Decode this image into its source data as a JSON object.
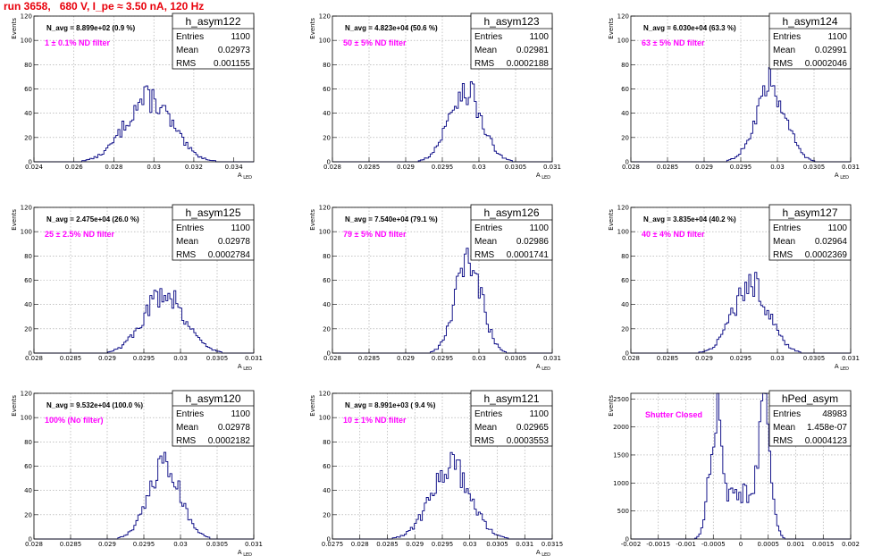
{
  "page": {
    "title": "run 3658,   680 V, I_pe ≈ 3.50 nA, 120 Hz"
  },
  "colors": {
    "title": "#e8000b",
    "histogram": "#000080",
    "annotation": "#ff00ff",
    "grid": "#a0a0a0"
  },
  "chart_data": [
    {
      "type": "histogram",
      "name": "h_asym122",
      "xlabel": "A_LED",
      "ylabel": "Events",
      "xlim": [
        0.024,
        0.035
      ],
      "ylim": [
        0,
        120
      ],
      "xticks": [
        "0.024",
        "0.026",
        "0.028",
        "0.03",
        "0.032",
        "0.034"
      ],
      "xtick_values": [
        0.024,
        0.026,
        0.028,
        0.03,
        0.032,
        0.034
      ],
      "yticks": [
        0,
        20,
        40,
        60,
        80,
        100,
        120
      ],
      "grid": true,
      "stats": {
        "Entries": "1100",
        "Mean": "0.02973",
        "RMS": "0.001155"
      },
      "n_avg": "N_avg = 8.899e+02 (0.9 %)",
      "filter": "1 ± 0.1% ND filter",
      "mean": 0.02973,
      "rms": 0.001155,
      "peak": 52
    },
    {
      "type": "histogram",
      "name": "h_asym123",
      "xlabel": "A_LED",
      "ylabel": "Events",
      "xlim": [
        0.028,
        0.031
      ],
      "ylim": [
        0,
        120
      ],
      "xticks": [
        "0.028",
        "0.0285",
        "0.029",
        "0.0295",
        "0.03",
        "0.0305",
        "0.031"
      ],
      "xtick_values": [
        0.028,
        0.0285,
        0.029,
        0.0295,
        0.03,
        0.0305,
        0.031
      ],
      "yticks": [
        0,
        20,
        40,
        60,
        80,
        100,
        120
      ],
      "grid": true,
      "stats": {
        "Entries": "1100",
        "Mean": "0.02981",
        "RMS": "0.0002188"
      },
      "n_avg": "N_avg = 4.823e+04 (50.6 %)",
      "filter": "50 ± 5% ND filter",
      "mean": 0.02981,
      "rms": 0.0002188,
      "peak": 60
    },
    {
      "type": "histogram",
      "name": "h_asym124",
      "xlabel": "A_LED",
      "ylabel": "Events",
      "xlim": [
        0.028,
        0.031
      ],
      "ylim": [
        0,
        120
      ],
      "xticks": [
        "0.028",
        "0.0285",
        "0.029",
        "0.0295",
        "0.03",
        "0.0305",
        "0.031"
      ],
      "xtick_values": [
        0.028,
        0.0285,
        0.029,
        0.0295,
        0.03,
        0.0305,
        0.031
      ],
      "yticks": [
        0,
        20,
        40,
        60,
        80,
        100,
        120
      ],
      "grid": true,
      "stats": {
        "Entries": "1100",
        "Mean": "0.02991",
        "RMS": "0.0002046"
      },
      "n_avg": "N_avg = 6.030e+04 (63.3 %)",
      "filter": "63 ± 5% ND filter",
      "mean": 0.02991,
      "rms": 0.0002046,
      "peak": 64
    },
    {
      "type": "histogram",
      "name": "h_asym125",
      "xlabel": "A_LED",
      "ylabel": "Events",
      "xlim": [
        0.028,
        0.031
      ],
      "ylim": [
        0,
        120
      ],
      "xticks": [
        "0.028",
        "0.0285",
        "0.029",
        "0.0295",
        "0.03",
        "0.0305",
        "0.031"
      ],
      "xtick_values": [
        0.028,
        0.0285,
        0.029,
        0.0295,
        0.03,
        0.0305,
        0.031
      ],
      "yticks": [
        0,
        20,
        40,
        60,
        80,
        100,
        120
      ],
      "grid": true,
      "stats": {
        "Entries": "1100",
        "Mean": "0.02978",
        "RMS": "0.0002784"
      },
      "n_avg": "N_avg = 2.475e+04 (26.0 %)",
      "filter": "25 ± 2.5% ND filter",
      "mean": 0.02978,
      "rms": 0.0002784,
      "peak": 50
    },
    {
      "type": "histogram",
      "name": "h_asym126",
      "xlabel": "A_LED",
      "ylabel": "Events",
      "xlim": [
        0.028,
        0.031
      ],
      "ylim": [
        0,
        120
      ],
      "xticks": [
        "0.028",
        "0.0285",
        "0.029",
        "0.0295",
        "0.03",
        "0.0305",
        "0.031"
      ],
      "xtick_values": [
        0.028,
        0.0285,
        0.029,
        0.0295,
        0.03,
        0.0305,
        0.031
      ],
      "yticks": [
        0,
        20,
        40,
        60,
        80,
        100,
        120
      ],
      "grid": true,
      "stats": {
        "Entries": "1100",
        "Mean": "0.02986",
        "RMS": "0.0001741"
      },
      "n_avg": "N_avg = 7.540e+04 (79.1 %)",
      "filter": "79 ± 5% ND filter",
      "mean": 0.02986,
      "rms": 0.0001741,
      "peak": 78
    },
    {
      "type": "histogram",
      "name": "h_asym127",
      "xlabel": "A_LED",
      "ylabel": "Events",
      "xlim": [
        0.028,
        0.031
      ],
      "ylim": [
        0,
        120
      ],
      "xticks": [
        "0.028",
        "0.0285",
        "0.029",
        "0.0295",
        "0.03",
        "0.0305",
        "0.031"
      ],
      "xtick_values": [
        0.028,
        0.0285,
        0.029,
        0.0295,
        0.03,
        0.0305,
        0.031
      ],
      "yticks": [
        0,
        20,
        40,
        60,
        80,
        100,
        120
      ],
      "grid": true,
      "stats": {
        "Entries": "1100",
        "Mean": "0.02964",
        "RMS": "0.0002369"
      },
      "n_avg": "N_avg = 3.835e+04 (40.2 %)",
      "filter": "40 ± 4% ND filter",
      "mean": 0.02964,
      "rms": 0.0002369,
      "peak": 58
    },
    {
      "type": "histogram",
      "name": "h_asym120",
      "xlabel": "A_LED",
      "ylabel": "Events",
      "xlim": [
        0.028,
        0.031
      ],
      "ylim": [
        0,
        120
      ],
      "xticks": [
        "0.028",
        "0.0285",
        "0.029",
        "0.0295",
        "0.03",
        "0.0305",
        "0.031"
      ],
      "xtick_values": [
        0.028,
        0.0285,
        0.029,
        0.0295,
        0.03,
        0.0305,
        0.031
      ],
      "yticks": [
        0,
        20,
        40,
        60,
        80,
        100,
        120
      ],
      "grid": true,
      "stats": {
        "Entries": "1100",
        "Mean": "0.02978",
        "RMS": "0.0002182"
      },
      "n_avg": "N_avg = 9.532e+04 (100.0 %)",
      "filter": "100% (No filter)",
      "mean": 0.02978,
      "rms": 0.0002182,
      "peak": 60
    },
    {
      "type": "histogram",
      "name": "h_asym121",
      "xlabel": "A_LED",
      "ylabel": "Events",
      "xlim": [
        0.0275,
        0.0315
      ],
      "ylim": [
        0,
        120
      ],
      "xticks": [
        "0.0275",
        "0.028",
        "0.0285",
        "0.029",
        "0.0295",
        "0.03",
        "0.0305",
        "0.031",
        "0.0315"
      ],
      "xtick_values": [
        0.0275,
        0.028,
        0.0285,
        0.029,
        0.0295,
        0.03,
        0.0305,
        0.031,
        0.0315
      ],
      "yticks": [
        0,
        20,
        40,
        60,
        80,
        100,
        120
      ],
      "grid": true,
      "stats": {
        "Entries": "1100",
        "Mean": "0.02965",
        "RMS": "0.0003553"
      },
      "n_avg": "N_avg = 8.991e+03 ( 9.4 %)",
      "filter": "10 ± 1% ND filter",
      "mean": 0.02965,
      "rms": 0.0003553,
      "peak": 60
    },
    {
      "type": "histogram",
      "name": "hPed_asym",
      "xlabel": "",
      "ylabel": "Events",
      "xlim": [
        -0.002,
        0.002
      ],
      "ylim": [
        0,
        2600
      ],
      "xticks": [
        "-0.002",
        "-0.0015",
        "-0.001",
        "-0.0005",
        "0",
        "0.0005",
        "0.001",
        "0.0015",
        "0.002"
      ],
      "xtick_values": [
        -0.002,
        -0.0015,
        -0.001,
        -0.0005,
        0,
        0.0005,
        0.001,
        0.0015,
        0.002
      ],
      "yticks": [
        0,
        500,
        1000,
        1500,
        2000,
        2500
      ],
      "grid": true,
      "stats": {
        "Entries": "48983",
        "Mean": "1.458e-07",
        "RMS": "0.0004123"
      },
      "n_avg": "",
      "filter": "Shutter Closed",
      "bimodal": true,
      "peaks": [
        {
          "x": -0.00044,
          "h": 2300
        },
        {
          "x": 0.00042,
          "h": 2450
        }
      ],
      "valley": 750
    }
  ]
}
